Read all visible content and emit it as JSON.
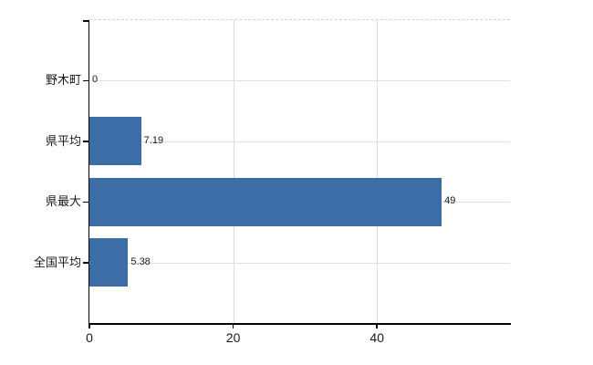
{
  "chart_data": {
    "type": "bar",
    "orientation": "horizontal",
    "title": "",
    "categories": [
      "野木町",
      "県平均",
      "県最大",
      "全国平均"
    ],
    "values": [
      0,
      7.19,
      49,
      5.38
    ],
    "value_labels": [
      "0",
      "7.19",
      "49",
      "5.38"
    ],
    "x_ticks": [
      0,
      20,
      40
    ],
    "x_tick_labels": [
      "0",
      "20",
      "40"
    ],
    "xlim": [
      0,
      58.5
    ],
    "grid": true,
    "legend": false,
    "colors": {
      "bar": "#3d6da6",
      "gridline_horizontal": "#dde3dd",
      "gridline_vertical": "#dcdcdc",
      "top_border_dashed": "#d4d1d4",
      "axis": "#000000",
      "text": "#1a1a1a",
      "background": "#ffffff"
    }
  }
}
